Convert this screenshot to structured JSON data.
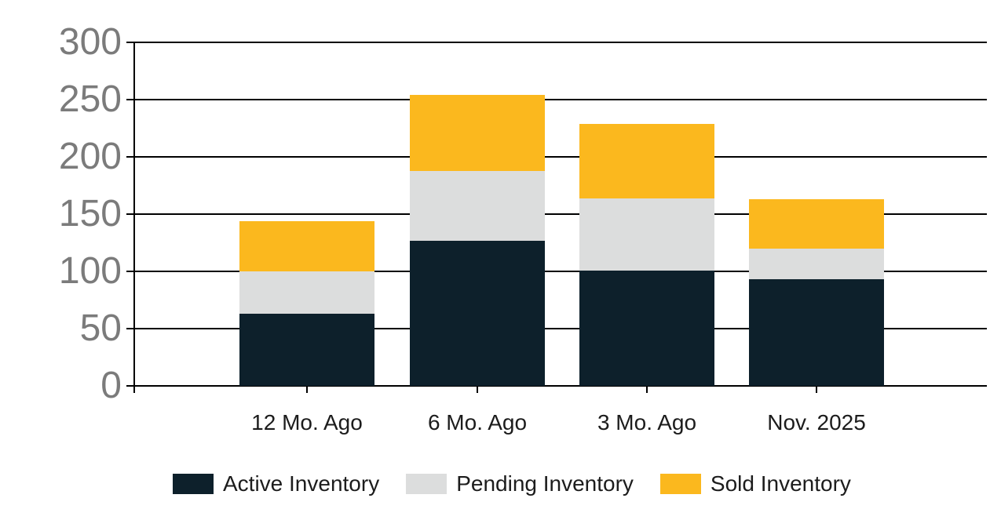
{
  "chart_data": {
    "type": "bar",
    "stacked": true,
    "title": "",
    "xlabel": "",
    "ylabel": "",
    "categories": [
      "12 Mo. Ago",
      "6 Mo. Ago",
      "3 Mo. Ago",
      "Nov. 2025"
    ],
    "series": [
      {
        "name": "Active Inventory",
        "color": "#0d202b",
        "values": [
          63,
          127,
          101,
          93
        ]
      },
      {
        "name": "Pending Inventory",
        "color": "#dcdddd",
        "values": [
          37,
          61,
          63,
          27
        ]
      },
      {
        "name": "Sold Inventory",
        "color": "#fbb81e",
        "values": [
          44,
          66,
          65,
          43
        ]
      }
    ],
    "stack_totals": [
      144,
      254,
      229,
      163
    ],
    "yticks": [
      "0",
      "50",
      "100",
      "150",
      "200",
      "250",
      "300"
    ],
    "ylim": [
      0,
      300
    ],
    "grid": true,
    "legend_position": "bottom"
  },
  "colors": {
    "axis": "#000000",
    "y_tick_label": "#7b7b7b",
    "x_tick_label": "#1c1c1c",
    "background": "#ffffff"
  }
}
